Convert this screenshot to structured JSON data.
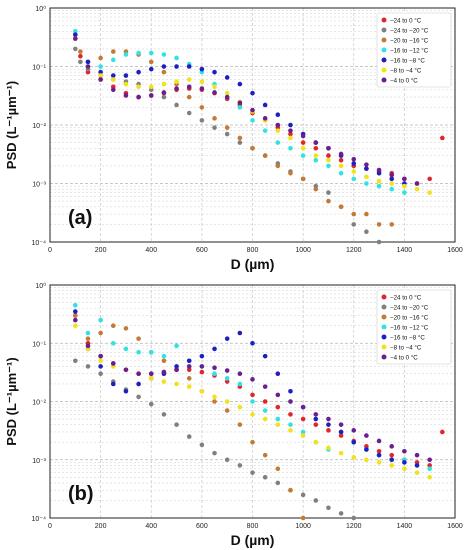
{
  "chart_data": [
    {
      "type": "scatter",
      "panel_label": "(a)",
      "xlabel": "D (µm)",
      "ylabel": "PSD (L⁻¹µm⁻¹)",
      "xlim": [
        0,
        1600
      ],
      "ylim_log10": [
        -4,
        0
      ],
      "y_scale": "log",
      "grid": true,
      "legend_placement": "top-right",
      "x_ticks": [
        0,
        200,
        400,
        600,
        800,
        1000,
        1200,
        1400,
        1600
      ],
      "y_ticks": [
        {
          "exp": 0,
          "label": "10⁰"
        },
        {
          "exp": -1,
          "label": "10⁻¹"
        },
        {
          "exp": -2,
          "label": "10⁻²"
        },
        {
          "exp": -3,
          "label": "10⁻³"
        },
        {
          "exp": -4,
          "label": "10⁻⁴"
        }
      ],
      "series": [
        {
          "name": "−24 to 0 °C",
          "color": "#e0262b",
          "x": [
            100,
            120,
            150,
            200,
            250,
            300,
            350,
            400,
            450,
            500,
            550,
            600,
            650,
            700,
            750,
            800,
            850,
            900,
            950,
            1000,
            1050,
            1100,
            1150,
            1200,
            1250,
            1300,
            1350,
            1400,
            1450,
            1500,
            1550
          ],
          "y": [
            0.3,
            0.15,
            0.08,
            0.06,
            0.045,
            0.035,
            0.03,
            0.032,
            0.035,
            0.04,
            0.042,
            0.04,
            0.035,
            0.028,
            0.022,
            0.016,
            0.012,
            0.009,
            0.007,
            0.005,
            0.004,
            0.003,
            0.0025,
            0.002,
            0.0018,
            0.0016,
            0.0015,
            0.0012,
            0.001,
            0.0012,
            0.006
          ]
        },
        {
          "name": "−24 to −20 °C",
          "color": "#808080",
          "x": [
            100,
            120,
            150,
            200,
            250,
            300,
            350,
            400,
            450,
            500,
            550,
            600,
            650,
            700,
            750,
            800,
            850,
            900,
            950,
            1000,
            1050,
            1100,
            1150,
            1200,
            1250,
            1300
          ],
          "y": [
            0.2,
            0.12,
            0.09,
            0.07,
            0.06,
            0.055,
            0.05,
            0.04,
            0.03,
            0.022,
            0.016,
            0.012,
            0.009,
            0.007,
            0.005,
            0.004,
            0.003,
            0.0022,
            0.0016,
            0.0012,
            0.0009,
            0.0007,
            0.0004,
            0.0002,
            0.00015,
            0.0001
          ]
        },
        {
          "name": "−20 to −16 °C",
          "color": "#c47a37",
          "x": [
            100,
            120,
            150,
            200,
            250,
            300,
            350,
            400,
            450,
            500,
            550,
            600,
            650,
            700,
            750,
            800,
            850,
            900,
            950,
            1000,
            1050,
            1100,
            1150,
            1200,
            1250,
            1300,
            1350
          ],
          "y": [
            0.35,
            0.18,
            0.12,
            0.14,
            0.18,
            0.18,
            0.16,
            0.12,
            0.08,
            0.05,
            0.03,
            0.02,
            0.013,
            0.009,
            0.006,
            0.004,
            0.003,
            0.002,
            0.0015,
            0.0012,
            0.0008,
            0.0005,
            0.0004,
            0.0003,
            0.0003,
            0.0002,
            0.0002
          ]
        },
        {
          "name": "−16 to −12 °C",
          "color": "#2fe3e3",
          "x": [
            100,
            150,
            200,
            250,
            300,
            350,
            400,
            450,
            500,
            550,
            600,
            650,
            700,
            750,
            800,
            850,
            900,
            950,
            1000,
            1050,
            1100,
            1150,
            1200,
            1250,
            1300,
            1350,
            1400
          ],
          "y": [
            0.4,
            0.12,
            0.1,
            0.13,
            0.16,
            0.17,
            0.17,
            0.16,
            0.14,
            0.11,
            0.08,
            0.05,
            0.03,
            0.02,
            0.012,
            0.008,
            0.005,
            0.004,
            0.003,
            0.0025,
            0.002,
            0.0015,
            0.0012,
            0.001,
            0.0009,
            0.0008,
            0.0007
          ]
        },
        {
          "name": "−16 to −8 °C",
          "color": "#1f1fbf",
          "x": [
            100,
            150,
            200,
            250,
            300,
            350,
            400,
            450,
            500,
            550,
            600,
            650,
            700,
            750,
            800,
            850,
            900,
            950,
            1000,
            1050,
            1100,
            1150,
            1200,
            1250,
            1300,
            1350,
            1400
          ],
          "y": [
            0.35,
            0.12,
            0.08,
            0.07,
            0.07,
            0.08,
            0.09,
            0.1,
            0.1,
            0.1,
            0.09,
            0.08,
            0.065,
            0.05,
            0.035,
            0.022,
            0.015,
            0.01,
            0.007,
            0.005,
            0.004,
            0.003,
            0.0022,
            0.0018,
            0.0015,
            0.0012,
            0.001
          ]
        },
        {
          "name": "−8 to −4 °C",
          "color": "#f2e21a",
          "x": [
            100,
            150,
            200,
            250,
            300,
            350,
            400,
            450,
            500,
            550,
            600,
            650,
            700,
            750,
            800,
            850,
            900,
            950,
            1000,
            1050,
            1100,
            1150,
            1200,
            1250,
            1300,
            1350,
            1400,
            1450,
            1500
          ],
          "y": [
            0.3,
            0.1,
            0.07,
            0.06,
            0.05,
            0.045,
            0.045,
            0.05,
            0.055,
            0.06,
            0.055,
            0.045,
            0.035,
            0.025,
            0.017,
            0.012,
            0.008,
            0.006,
            0.004,
            0.003,
            0.0025,
            0.002,
            0.0016,
            0.0013,
            0.0011,
            0.001,
            0.0009,
            0.0008,
            0.0007
          ]
        },
        {
          "name": "−4 to 0 °C",
          "color": "#6a1f8f",
          "x": [
            100,
            150,
            200,
            250,
            300,
            350,
            400,
            450,
            500,
            550,
            600,
            650,
            700,
            750,
            800,
            850,
            900,
            950,
            1000,
            1050,
            1100,
            1150,
            1200,
            1250,
            1300,
            1350,
            1400,
            1450
          ],
          "y": [
            0.3,
            0.1,
            0.06,
            0.04,
            0.032,
            0.03,
            0.032,
            0.036,
            0.042,
            0.045,
            0.042,
            0.036,
            0.03,
            0.024,
            0.018,
            0.013,
            0.01,
            0.008,
            0.0065,
            0.005,
            0.004,
            0.0032,
            0.0026,
            0.0021,
            0.0017,
            0.0014,
            0.0012,
            0.001
          ]
        }
      ]
    },
    {
      "type": "scatter",
      "panel_label": "(b)",
      "xlabel": "D (µm)",
      "ylabel": "PSD (L⁻¹µm⁻¹)",
      "xlim": [
        0,
        1600
      ],
      "ylim_log10": [
        -4,
        0
      ],
      "y_scale": "log",
      "grid": true,
      "legend_placement": "top-right",
      "x_ticks": [
        0,
        200,
        400,
        600,
        800,
        1000,
        1200,
        1400,
        1600
      ],
      "y_ticks": [
        {
          "exp": 0,
          "label": "10⁰"
        },
        {
          "exp": -1,
          "label": "10⁻¹"
        },
        {
          "exp": -2,
          "label": "10⁻²"
        },
        {
          "exp": -3,
          "label": "10⁻³"
        },
        {
          "exp": -4,
          "label": "10⁻⁴"
        }
      ],
      "series": [
        {
          "name": "−24 to 0 °C",
          "color": "#e0262b",
          "x": [
            100,
            150,
            200,
            250,
            300,
            350,
            400,
            450,
            500,
            550,
            600,
            650,
            700,
            750,
            800,
            850,
            900,
            950,
            1000,
            1050,
            1100,
            1150,
            1200,
            1250,
            1300,
            1350,
            1400,
            1450,
            1500,
            1550
          ],
          "y": [
            0.3,
            0.1,
            0.06,
            0.045,
            0.035,
            0.03,
            0.03,
            0.032,
            0.035,
            0.035,
            0.032,
            0.028,
            0.022,
            0.018,
            0.013,
            0.01,
            0.008,
            0.006,
            0.005,
            0.004,
            0.0032,
            0.0026,
            0.0021,
            0.0017,
            0.0014,
            0.0012,
            0.001,
            0.0009,
            0.0008,
            0.003
          ]
        },
        {
          "name": "−24 to −20 °C",
          "color": "#808080",
          "x": [
            100,
            150,
            200,
            250,
            300,
            350,
            400,
            450,
            500,
            550,
            600,
            650,
            700,
            750,
            800,
            850,
            900,
            950,
            1000,
            1050,
            1100,
            1150,
            1200
          ],
          "y": [
            0.05,
            0.04,
            0.03,
            0.022,
            0.016,
            0.012,
            0.009,
            0.006,
            0.004,
            0.0025,
            0.0018,
            0.0013,
            0.001,
            0.0008,
            0.0006,
            0.0005,
            0.0004,
            0.0003,
            0.00025,
            0.0002,
            0.00015,
            0.00012,
            0.0001
          ]
        },
        {
          "name": "−20 to −16 °C",
          "color": "#c47a37",
          "x": [
            100,
            150,
            200,
            250,
            300,
            350,
            400,
            450,
            500,
            550,
            600,
            650,
            700,
            750,
            800,
            850,
            900,
            950,
            1000
          ],
          "y": [
            0.3,
            0.12,
            0.15,
            0.2,
            0.18,
            0.12,
            0.07,
            0.05,
            0.035,
            0.025,
            0.015,
            0.01,
            0.007,
            0.004,
            0.002,
            0.0012,
            0.0007,
            0.0003,
            0.0001
          ]
        },
        {
          "name": "−16 to −12 °C",
          "color": "#2fe3e3",
          "x": [
            100,
            150,
            200,
            250,
            300,
            350,
            400,
            450,
            500,
            550,
            600,
            650,
            700,
            750,
            800,
            850,
            900,
            950,
            1000,
            1050,
            1100,
            1150,
            1200,
            1250,
            1300,
            1350,
            1400,
            1450,
            1500
          ],
          "y": [
            0.45,
            0.15,
            0.25,
            0.1,
            0.08,
            0.07,
            0.07,
            0.06,
            0.09,
            0.05,
            0.04,
            0.03,
            0.025,
            0.02,
            0.01,
            0.007,
            0.005,
            0.004,
            0.003,
            0.002,
            0.0015,
            0.003,
            0.002,
            0.0015,
            0.0012,
            0.001,
            0.001,
            0.0008,
            0.0007
          ]
        },
        {
          "name": "−16 to −8 °C",
          "color": "#1f1fbf",
          "x": [
            100,
            150,
            200,
            250,
            300,
            350,
            400,
            450,
            500,
            550,
            600,
            650,
            700,
            750,
            800,
            850,
            900,
            950,
            1000,
            1050,
            1100,
            1150,
            1200,
            1250,
            1300,
            1350,
            1400,
            1450
          ],
          "y": [
            0.35,
            0.08,
            0.04,
            0.02,
            0.015,
            0.02,
            0.025,
            0.03,
            0.04,
            0.05,
            0.06,
            0.08,
            0.12,
            0.15,
            0.1,
            0.06,
            0.03,
            0.015,
            0.008,
            0.005,
            0.004,
            0.003,
            0.002,
            0.0015,
            0.0012,
            0.001,
            0.0009,
            0.0008
          ]
        },
        {
          "name": "−8 to −4 °C",
          "color": "#f2e21a",
          "x": [
            100,
            150,
            200,
            250,
            300,
            350,
            400,
            450,
            500,
            550,
            600,
            650,
            700,
            750,
            800,
            850,
            900,
            950,
            1000,
            1050,
            1100,
            1150,
            1200,
            1250,
            1300,
            1350,
            1400,
            1450,
            1500
          ],
          "y": [
            0.2,
            0.08,
            0.05,
            0.04,
            0.035,
            0.03,
            0.025,
            0.022,
            0.02,
            0.018,
            0.015,
            0.012,
            0.01,
            0.008,
            0.006,
            0.005,
            0.004,
            0.0032,
            0.0026,
            0.002,
            0.0016,
            0.0013,
            0.0011,
            0.001,
            0.0009,
            0.0008,
            0.0007,
            0.0006,
            0.0005
          ]
        },
        {
          "name": "−4 to 0 °C",
          "color": "#6a1f8f",
          "x": [
            100,
            150,
            200,
            250,
            300,
            350,
            400,
            450,
            500,
            550,
            600,
            650,
            700,
            750,
            800,
            850,
            900,
            950,
            1000,
            1050,
            1100,
            1150,
            1200,
            1250,
            1300,
            1350,
            1400,
            1450,
            1500
          ],
          "y": [
            0.25,
            0.09,
            0.06,
            0.045,
            0.035,
            0.03,
            0.03,
            0.032,
            0.035,
            0.04,
            0.04,
            0.038,
            0.034,
            0.03,
            0.024,
            0.018,
            0.013,
            0.01,
            0.008,
            0.006,
            0.005,
            0.004,
            0.0032,
            0.0026,
            0.0021,
            0.0017,
            0.0014,
            0.0012,
            0.001
          ]
        }
      ]
    }
  ]
}
